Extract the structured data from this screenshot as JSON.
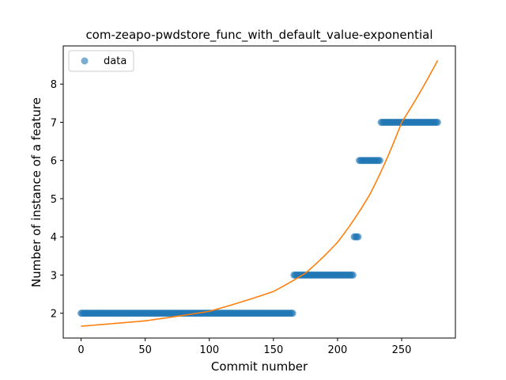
{
  "chart_data": {
    "type": "scatter",
    "title": "com-zeapo-pwdstore_func_with_default_value-exponential",
    "xlabel": "Commit number",
    "ylabel": "Number of instance of a feature",
    "xlim": [
      -13.9,
      291.9
    ],
    "ylim": [
      1.35,
      9.0
    ],
    "xticks": [
      0,
      50,
      100,
      150,
      200,
      250
    ],
    "yticks": [
      2,
      3,
      4,
      5,
      6,
      7,
      8
    ],
    "grid": false,
    "legend": {
      "placement": "top-left",
      "entries": [
        "data"
      ]
    },
    "colors": {
      "data": "#1f77b4",
      "fit": "#ff7f0e"
    },
    "series": [
      {
        "name": "data",
        "kind": "scatter",
        "segments": [
          {
            "x_start": 0,
            "x_end": 165,
            "y": 2
          },
          {
            "x_start": 166,
            "x_end": 212,
            "y": 3
          },
          {
            "x_start": 213,
            "x_end": 216,
            "y": 4
          },
          {
            "x_start": 217,
            "x_end": 233,
            "y": 6
          },
          {
            "x_start": 234,
            "x_end": 278,
            "y": 7
          }
        ]
      },
      {
        "kind": "line",
        "model": "exponential",
        "points": [
          [
            0,
            1.66
          ],
          [
            50,
            1.8
          ],
          [
            100,
            2.05
          ],
          [
            150,
            2.57
          ],
          [
            175,
            3.05
          ],
          [
            200,
            3.86
          ],
          [
            225,
            5.1
          ],
          [
            250,
            7.0
          ],
          [
            278,
            8.62
          ]
        ]
      }
    ]
  }
}
